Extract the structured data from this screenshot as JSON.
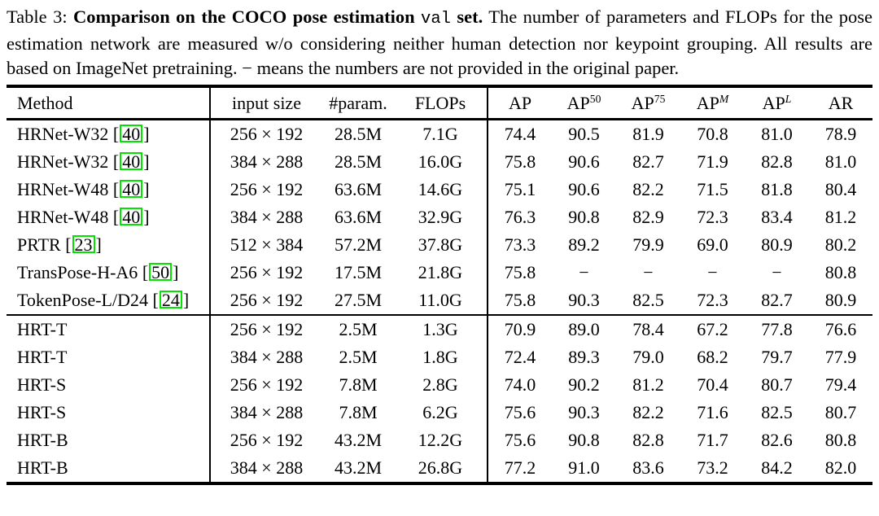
{
  "caption": {
    "prefix": "Table 3: ",
    "bold_title": "Comparison on the COCO pose estimation ",
    "code_word": "val",
    "bold_suffix": " set.",
    "body": "  The number of parameters and FLOPs for the pose estimation network are measured w/o considering neither human detection nor keypoint grouping. All results are based on ImageNet pretraining. − means the numbers are not provided in the original paper."
  },
  "colors": {
    "citation_box": "#00e400",
    "text": "#000000",
    "rule": "#000000"
  },
  "table": {
    "headers": [
      {
        "label": "Method"
      },
      {
        "label": "input size"
      },
      {
        "label": "#param."
      },
      {
        "label": "FLOPs"
      },
      {
        "label": "AP"
      },
      {
        "label": "AP",
        "sup": "50"
      },
      {
        "label": "AP",
        "sup": "75"
      },
      {
        "label": "AP",
        "sup": "M"
      },
      {
        "label": "AP",
        "sup": "L"
      },
      {
        "label": "AR"
      }
    ],
    "rows": [
      {
        "section": 1,
        "method": "HRNet-W32",
        "cite": "40",
        "values": [
          "256 × 192",
          "28.5M",
          "7.1G",
          "74.4",
          "90.5",
          "81.9",
          "70.8",
          "81.0",
          "78.9"
        ]
      },
      {
        "section": 1,
        "method": "HRNet-W32",
        "cite": "40",
        "values": [
          "384 × 288",
          "28.5M",
          "16.0G",
          "75.8",
          "90.6",
          "82.7",
          "71.9",
          "82.8",
          "81.0"
        ]
      },
      {
        "section": 1,
        "method": "HRNet-W48",
        "cite": "40",
        "values": [
          "256 × 192",
          "63.6M",
          "14.6G",
          "75.1",
          "90.6",
          "82.2",
          "71.5",
          "81.8",
          "80.4"
        ]
      },
      {
        "section": 1,
        "method": "HRNet-W48",
        "cite": "40",
        "values": [
          "384 × 288",
          "63.6M",
          "32.9G",
          "76.3",
          "90.8",
          "82.9",
          "72.3",
          "83.4",
          "81.2"
        ]
      },
      {
        "section": 1,
        "method": "PRTR",
        "cite": "23",
        "values": [
          "512 × 384",
          "57.2M",
          "37.8G",
          "73.3",
          "89.2",
          "79.9",
          "69.0",
          "80.9",
          "80.2"
        ]
      },
      {
        "section": 1,
        "method": "TransPose-H-A6",
        "cite": "50",
        "values": [
          "256 × 192",
          "17.5M",
          "21.8G",
          "75.8",
          "−",
          "−",
          "−",
          "−",
          "80.8"
        ]
      },
      {
        "section": 1,
        "method": "TokenPose-L/D24",
        "cite": "24",
        "values": [
          "256 × 192",
          "27.5M",
          "11.0G",
          "75.8",
          "90.3",
          "82.5",
          "72.3",
          "82.7",
          "80.9"
        ]
      },
      {
        "section": 2,
        "method": "HRT-T",
        "cite": null,
        "values": [
          "256 × 192",
          "2.5M",
          "1.3G",
          "70.9",
          "89.0",
          "78.4",
          "67.2",
          "77.8",
          "76.6"
        ]
      },
      {
        "section": 2,
        "method": "HRT-T",
        "cite": null,
        "values": [
          "384 × 288",
          "2.5M",
          "1.8G",
          "72.4",
          "89.3",
          "79.0",
          "68.2",
          "79.7",
          "77.9"
        ]
      },
      {
        "section": 2,
        "method": "HRT-S",
        "cite": null,
        "values": [
          "256 × 192",
          "7.8M",
          "2.8G",
          "74.0",
          "90.2",
          "81.2",
          "70.4",
          "80.7",
          "79.4"
        ]
      },
      {
        "section": 2,
        "method": "HRT-S",
        "cite": null,
        "values": [
          "384 × 288",
          "7.8M",
          "6.2G",
          "75.6",
          "90.3",
          "82.2",
          "71.6",
          "82.5",
          "80.7"
        ]
      },
      {
        "section": 2,
        "method": "HRT-B",
        "cite": null,
        "values": [
          "256 × 192",
          "43.2M",
          "12.2G",
          "75.6",
          "90.8",
          "82.8",
          "71.7",
          "82.6",
          "80.8"
        ]
      },
      {
        "section": 2,
        "method": "HRT-B",
        "cite": null,
        "values": [
          "384 × 288",
          "43.2M",
          "26.8G",
          "77.2",
          "91.0",
          "83.6",
          "73.2",
          "84.2",
          "82.0"
        ]
      }
    ]
  }
}
